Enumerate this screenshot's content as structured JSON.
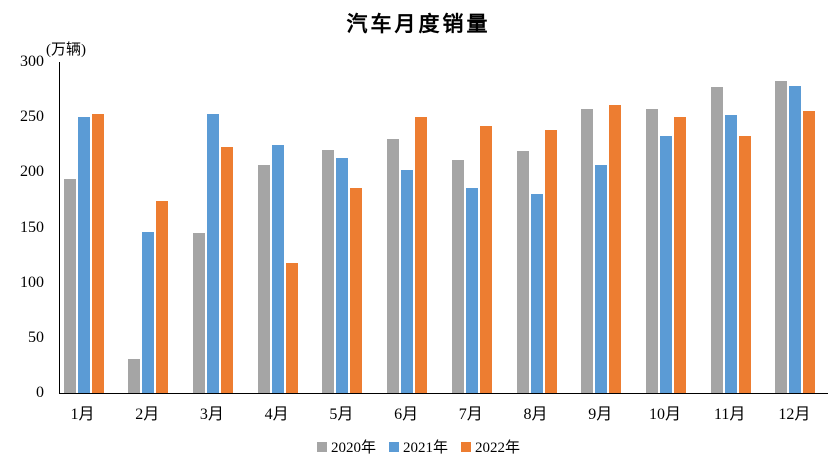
{
  "chart_data": {
    "type": "bar",
    "title": "汽车月度销量",
    "ylabel": "(万辆)",
    "xlabel": "",
    "categories": [
      "1月",
      "2月",
      "3月",
      "4月",
      "5月",
      "6月",
      "7月",
      "8月",
      "9月",
      "10月",
      "11月",
      "12月"
    ],
    "series": [
      {
        "name": "2020年",
        "color": "#A5A5A5",
        "values": [
          194,
          31,
          145,
          207,
          220,
          230,
          211,
          219,
          257,
          257,
          277,
          283
        ]
      },
      {
        "name": "2021年",
        "color": "#5B9BD5",
        "values": [
          250,
          146,
          253,
          225,
          213,
          202,
          186,
          180,
          207,
          233,
          252,
          278
        ]
      },
      {
        "name": "2022年",
        "color": "#ED7D31",
        "values": [
          253,
          174,
          223,
          118,
          186,
          250,
          242,
          238,
          261,
          250,
          233,
          256
        ]
      }
    ],
    "ylim": [
      0,
      300
    ],
    "yticks": [
      0,
      50,
      100,
      150,
      200,
      250,
      300
    ],
    "grid": false,
    "legend_position": "bottom",
    "axis_color": "#000000",
    "text_color": "#000000"
  }
}
